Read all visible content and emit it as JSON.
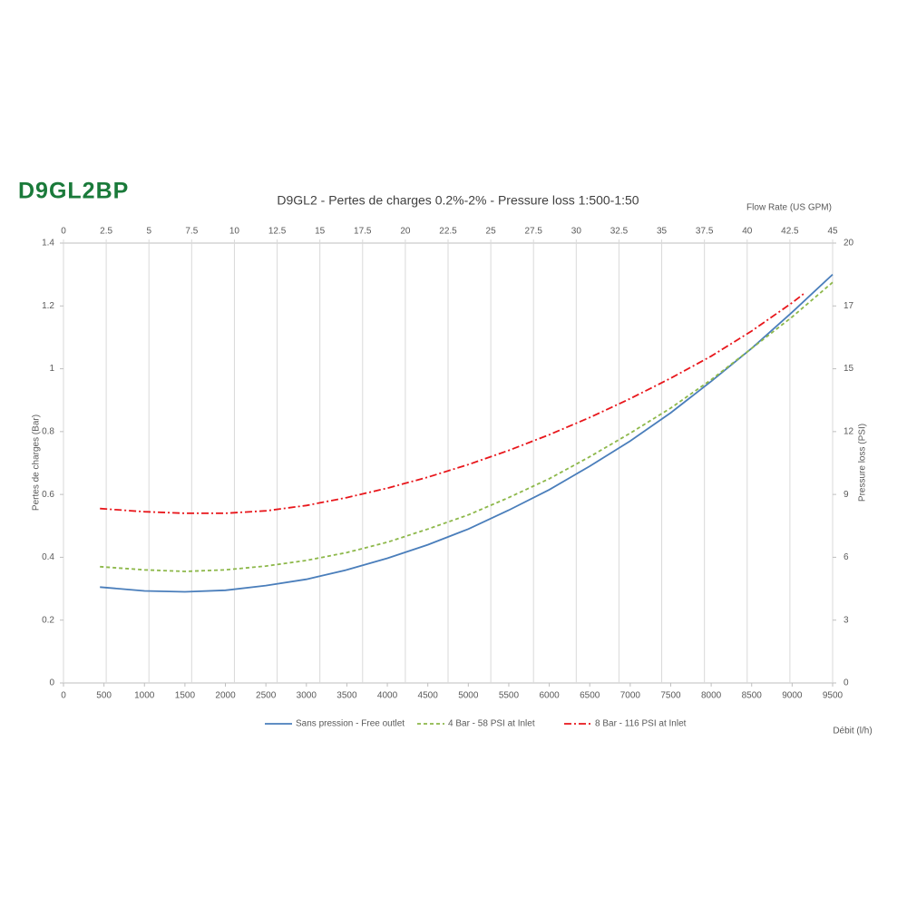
{
  "logo": "D9GL2BP",
  "chart_data": {
    "type": "line",
    "title": "D9GL2 - Pertes de charges 0.2%-2% - Pressure loss 1:500-1:50",
    "x_label": "Débit (l/h)",
    "x2_label": "Flow Rate (US GPM)",
    "y_label": "Pertes de charges (Bar)",
    "y2_label": "Pressure loss (PSI)",
    "xlim": [
      0,
      9500
    ],
    "xticks": [
      0,
      500,
      1000,
      1500,
      2000,
      2500,
      3000,
      3500,
      4000,
      4500,
      5000,
      5500,
      6000,
      6500,
      7000,
      7500,
      8000,
      8500,
      9000,
      9500
    ],
    "x2lim": [
      0,
      45
    ],
    "x2ticks": [
      0,
      2.5,
      5,
      7.5,
      10,
      12.5,
      15,
      17.5,
      20,
      22.5,
      25,
      27.5,
      30,
      32.5,
      35,
      37.5,
      40,
      42.5,
      45
    ],
    "ylim": [
      0,
      1.4
    ],
    "yticks": [
      0,
      0.2,
      0.4,
      0.6,
      0.8,
      1,
      1.2,
      1.4
    ],
    "y2lim": [
      0,
      20.3053
    ],
    "y2ticks": [
      0,
      {
        "value": 2.9008,
        "label": "3"
      },
      {
        "value": 5.8015,
        "label": "6"
      },
      {
        "value": 8.7023,
        "label": "9"
      },
      {
        "value": 11.603,
        "label": "12"
      },
      {
        "value": 14.5038,
        "label": "15"
      },
      {
        "value": 17.4045,
        "label": "17"
      },
      {
        "value": 20.3053,
        "label": "20"
      }
    ],
    "grid": true,
    "series": [
      {
        "name": "Sans pression - Free outlet",
        "color": "#4a7ebb",
        "dash": "none",
        "x": [
          450,
          1000,
          1500,
          2000,
          2500,
          3000,
          3500,
          4000,
          4500,
          5000,
          5500,
          6000,
          6500,
          7000,
          7500,
          8000,
          8500,
          9000,
          9500
        ],
        "values": [
          0.305,
          0.293,
          0.29,
          0.295,
          0.31,
          0.33,
          0.36,
          0.397,
          0.44,
          0.49,
          0.55,
          0.615,
          0.69,
          0.77,
          0.86,
          0.96,
          1.065,
          1.18,
          1.3
        ]
      },
      {
        "name": "4 Bar - 58 PSI at Inlet",
        "color": "#8db84a",
        "dash": "4,3",
        "x": [
          450,
          1000,
          1500,
          2000,
          2500,
          3000,
          3500,
          4000,
          4500,
          5000,
          5500,
          6000,
          6500,
          7000,
          7500,
          8000,
          8500,
          9000,
          9500
        ],
        "values": [
          0.37,
          0.36,
          0.355,
          0.36,
          0.372,
          0.39,
          0.415,
          0.448,
          0.49,
          0.535,
          0.59,
          0.65,
          0.72,
          0.795,
          0.875,
          0.965,
          1.065,
          1.165,
          1.275
        ]
      },
      {
        "name": "8 Bar - 116 PSI at Inlet",
        "color": "#e8161b",
        "dash": "8,3,2,3",
        "x": [
          450,
          1000,
          1500,
          2000,
          2500,
          3000,
          3500,
          4000,
          4500,
          5000,
          5500,
          6000,
          6500,
          7000,
          7500,
          8000,
          8500,
          9000,
          9150
        ],
        "values": [
          0.555,
          0.545,
          0.54,
          0.54,
          0.548,
          0.565,
          0.59,
          0.62,
          0.655,
          0.695,
          0.74,
          0.79,
          0.845,
          0.905,
          0.97,
          1.04,
          1.12,
          1.21,
          1.24
        ]
      }
    ]
  }
}
